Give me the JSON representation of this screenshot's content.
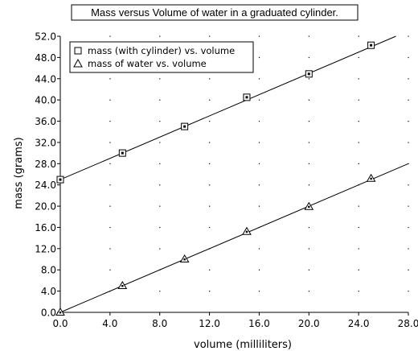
{
  "chart_data": {
    "type": "scatter",
    "title": "Mass versus Volume of water in a graduated cylinder.",
    "xlabel": "volume (milliliters)",
    "ylabel": "mass (grams)",
    "xlim": [
      0,
      28
    ],
    "ylim": [
      0,
      52
    ],
    "xticks": [
      0,
      4,
      8,
      12,
      16,
      20,
      24,
      28
    ],
    "yticks": [
      0,
      4,
      8,
      12,
      16,
      20,
      24,
      28,
      32,
      36,
      40,
      44,
      48,
      52
    ],
    "xtick_labels": [
      "0.0",
      "4.0",
      "8.0",
      "12.0",
      "16.0",
      "20.0",
      "24.0",
      "28.0"
    ],
    "ytick_labels": [
      "0.0",
      "4.0",
      "8.0",
      "12.0",
      "16.0",
      "20.0",
      "24.0",
      "28.0",
      "32.0",
      "36.0",
      "40.0",
      "44.0",
      "48.0",
      "52.0"
    ],
    "grid": "dotted",
    "legend_position": "top-left",
    "series": [
      {
        "name": "mass (with cylinder) vs. volume",
        "marker": "square",
        "x": [
          0,
          5,
          10,
          15,
          20,
          25
        ],
        "y": [
          25.0,
          30.0,
          35.0,
          40.5,
          44.9,
          50.3
        ],
        "fit": {
          "slope": 1.0,
          "intercept": 25.0
        }
      },
      {
        "name": "mass of water vs. volume",
        "marker": "triangle",
        "x": [
          0,
          5,
          10,
          15,
          20,
          25
        ],
        "y": [
          0.0,
          5.0,
          10.0,
          15.2,
          19.9,
          25.2
        ],
        "fit": {
          "slope": 1.0,
          "intercept": 0.0
        }
      }
    ]
  }
}
